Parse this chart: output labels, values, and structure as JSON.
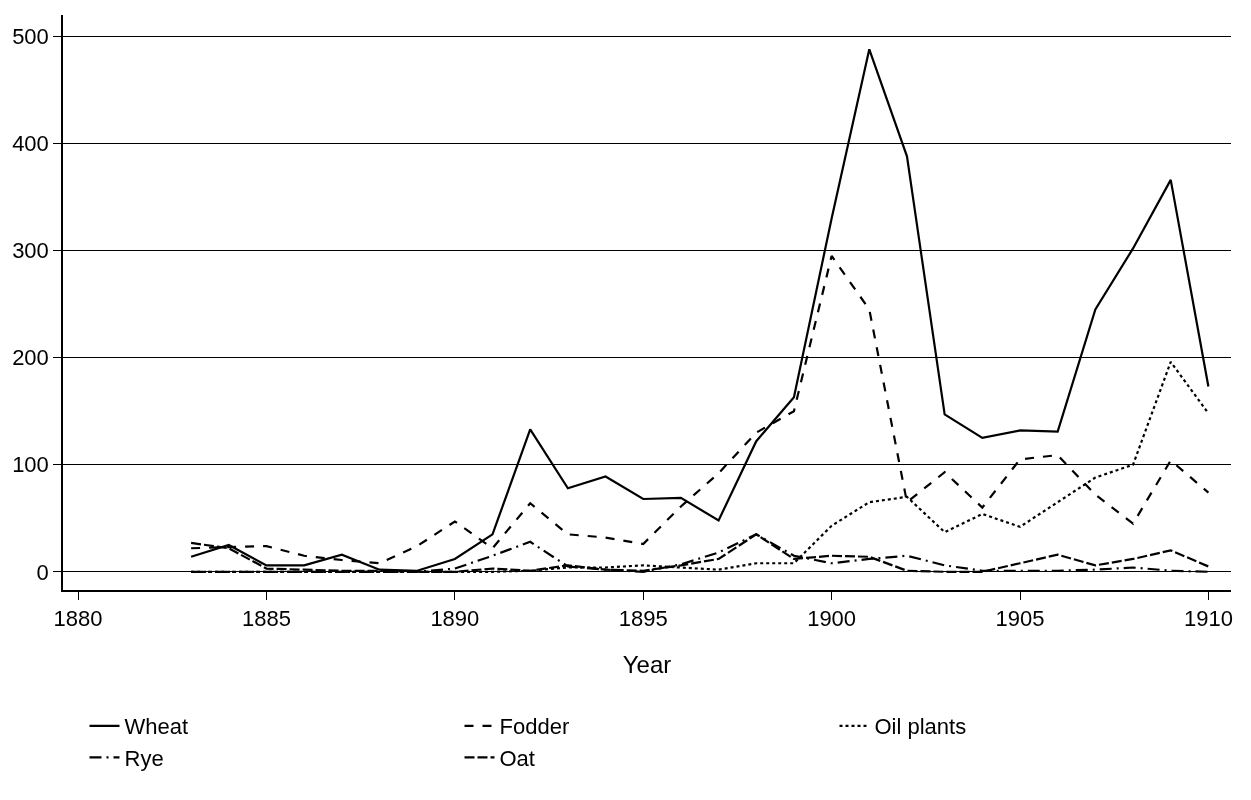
{
  "chart_data": {
    "type": "line",
    "xlabel": "Year",
    "x": [
      1883,
      1884,
      1885,
      1886,
      1887,
      1888,
      1889,
      1890,
      1891,
      1892,
      1893,
      1894,
      1895,
      1896,
      1897,
      1898,
      1899,
      1900,
      1901,
      1902,
      1903,
      1904,
      1905,
      1906,
      1907,
      1908,
      1909,
      1910
    ],
    "series": [
      {
        "name": "Wheat",
        "color": "#000000",
        "line_style": "solid",
        "values": [
          14,
          25,
          6,
          6,
          16,
          2,
          1,
          12,
          35,
          133,
          78,
          89,
          68,
          69,
          48,
          122,
          163,
          330,
          488,
          388,
          147,
          125,
          132,
          131,
          245,
          302,
          366,
          173
        ]
      },
      {
        "name": "Fodder",
        "color": "#000000",
        "line_style": "dashed",
        "values": [
          22,
          23,
          24,
          15,
          11,
          8,
          24,
          47,
          22,
          64,
          35,
          32,
          26,
          61,
          92,
          130,
          150,
          295,
          245,
          65,
          93,
          60,
          105,
          109,
          72,
          45,
          104,
          74
        ]
      },
      {
        "name": "Oil plants",
        "color": "#000000",
        "line_style": "dotted",
        "values": [
          0,
          0,
          0,
          0,
          0,
          0,
          0,
          0,
          0,
          1,
          4,
          4,
          6,
          4,
          2,
          8,
          8,
          43,
          65,
          70,
          37,
          54,
          42,
          65,
          88,
          100,
          196,
          148
        ]
      },
      {
        "name": "Rye",
        "color": "#000000",
        "line_style": "dashdot",
        "values": [
          0,
          0,
          0,
          0,
          0,
          0,
          0,
          3,
          15,
          28,
          5,
          2,
          0,
          7,
          18,
          35,
          15,
          8,
          12,
          15,
          6,
          1,
          1,
          1,
          2,
          4,
          1,
          0
        ]
      },
      {
        "name": "Oat",
        "color": "#000000",
        "line_style": "longdash",
        "values": [
          27,
          22,
          3,
          2,
          1,
          1,
          0,
          0,
          3,
          1,
          6,
          2,
          1,
          6,
          12,
          35,
          12,
          15,
          14,
          1,
          0,
          0,
          8,
          16,
          6,
          12,
          20,
          5
        ]
      }
    ],
    "xlim": [
      1879.6,
      1910.6
    ],
    "xticks": [
      1880,
      1885,
      1890,
      1895,
      1900,
      1905,
      1910
    ],
    "ylim": [
      -17,
      520
    ],
    "yticks": [
      0,
      100,
      200,
      300,
      400,
      500
    ],
    "grid": "y",
    "legend": "bottom",
    "marker": "none"
  }
}
